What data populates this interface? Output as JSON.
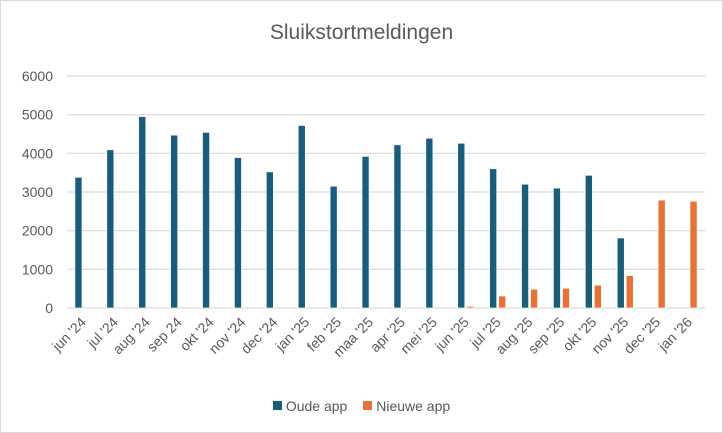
{
  "chart_data": {
    "type": "bar",
    "title": "Sluikstortmeldingen",
    "xlabel": "",
    "ylabel": "",
    "ylim": [
      0,
      6000
    ],
    "yticks": [
      0,
      1000,
      2000,
      3000,
      4000,
      5000,
      6000
    ],
    "grid": true,
    "legend": "bottom",
    "categories": [
      "jun '24",
      "jul '24",
      "aug '24",
      "sep 24",
      "okt '24",
      "nov '24",
      "dec '24",
      "jan '25",
      "feb '25",
      "maa '25",
      "apr '25",
      "mei '25",
      "jun '25",
      "jul '25",
      "aug '25",
      "sep '25",
      "okt '25",
      "nov '25",
      "dec '25",
      "jan '26"
    ],
    "series": [
      {
        "name": "Oude app",
        "color": "#175e7e",
        "values": [
          3380,
          4090,
          4950,
          4470,
          4540,
          3890,
          3520,
          4720,
          3150,
          3920,
          4220,
          4390,
          4260,
          3600,
          3200,
          3100,
          3430,
          1810,
          null,
          null
        ]
      },
      {
        "name": "Nieuwe app",
        "color": "#e97132",
        "values": [
          null,
          null,
          null,
          null,
          null,
          null,
          null,
          null,
          null,
          null,
          null,
          null,
          40,
          310,
          485,
          510,
          590,
          840,
          2790,
          2760
        ]
      }
    ]
  }
}
